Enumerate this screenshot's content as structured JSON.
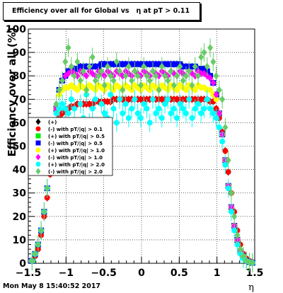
{
  "title": "Efficiency over all for Global vs   η at pT > 0.11",
  "footer": "Mon May  8 15:40:52 2017",
  "chart_data": {
    "type": "scatter",
    "title": "Efficiency over all for Global vs   η at pT > 0.11",
    "xlabel": "η",
    "ylabel": "Efficiency over all (%)",
    "xlim": [
      -1.5,
      1.5
    ],
    "ylim": [
      0,
      100
    ],
    "xticks": [
      -1.5,
      -1,
      -0.5,
      0,
      0.5,
      1,
      1.5
    ],
    "xtick_labels": [
      "−1.5",
      "−1",
      "−0.5",
      "0",
      "0.5",
      "1",
      "1.5"
    ],
    "yticks": [
      0,
      10,
      20,
      30,
      40,
      50,
      60,
      70,
      80,
      90,
      100
    ],
    "grid": true,
    "legend_position": "left-middle",
    "x": [
      -1.45,
      -1.41,
      -1.37,
      -1.33,
      -1.29,
      -1.25,
      -1.21,
      -1.17,
      -1.13,
      -1.09,
      -1.05,
      -1.01,
      -0.97,
      -0.93,
      -0.89,
      -0.85,
      -0.81,
      -0.77,
      -0.73,
      -0.69,
      -0.65,
      -0.61,
      -0.57,
      -0.53,
      -0.49,
      -0.45,
      -0.41,
      -0.37,
      -0.33,
      -0.29,
      -0.25,
      -0.21,
      -0.17,
      -0.13,
      -0.09,
      -0.05,
      -0.01,
      0.03,
      0.07,
      0.11,
      0.15,
      0.19,
      0.23,
      0.27,
      0.31,
      0.35,
      0.39,
      0.43,
      0.47,
      0.51,
      0.55,
      0.59,
      0.63,
      0.67,
      0.71,
      0.75,
      0.79,
      0.83,
      0.87,
      0.91,
      0.95,
      0.99,
      1.03,
      1.07,
      1.11,
      1.15,
      1.19,
      1.23,
      1.27,
      1.31,
      1.35,
      1.39,
      1.43,
      1.47
    ],
    "series": [
      {
        "name": "(+)",
        "color": "#000000",
        "shape": "diamond",
        "values": [
          1,
          3,
          6,
          12,
          20,
          28,
          38,
          48,
          56,
          62,
          64,
          65,
          66,
          67,
          67,
          68,
          68,
          68,
          68,
          68,
          68,
          69,
          69,
          69,
          69,
          69,
          69,
          70,
          70,
          70,
          70,
          70,
          70,
          70,
          70,
          70,
          70,
          70,
          70,
          70,
          70,
          70,
          70,
          70,
          70,
          70,
          70,
          70,
          70,
          70,
          70,
          70,
          70,
          70,
          70,
          70,
          70,
          70,
          70,
          69,
          69,
          66,
          62,
          56,
          48,
          39,
          30,
          22,
          14,
          8,
          4,
          2,
          1,
          0.5
        ]
      },
      {
        "name": "(-)  with pT/|q| > 0.1",
        "color": "#ff0000",
        "shape": "circle",
        "values": [
          1,
          3,
          6,
          12,
          20,
          28,
          38,
          48,
          56,
          62,
          64,
          65,
          66,
          67,
          67,
          68,
          68,
          68,
          68,
          68,
          68,
          69,
          69,
          69,
          69,
          69,
          69,
          70,
          70,
          70,
          70,
          70,
          70,
          70,
          70,
          70,
          70,
          70,
          70,
          70,
          70,
          70,
          70,
          70,
          70,
          70,
          70,
          70,
          70,
          70,
          70,
          70,
          70,
          70,
          70,
          70,
          70,
          70,
          70,
          69,
          69,
          66,
          62,
          56,
          48,
          39,
          30,
          22,
          14,
          8,
          4,
          2,
          1,
          0.5
        ]
      },
      {
        "name": "(+) with pT/|q| > 0.5",
        "color": "#00ee00",
        "shape": "square",
        "values": [
          1,
          4,
          8,
          14,
          22,
          32,
          44,
          56,
          66,
          74,
          78,
          80,
          82,
          82,
          83,
          83,
          84,
          84,
          84,
          84,
          84,
          84,
          84,
          85,
          85,
          85,
          85,
          85,
          85,
          85,
          85,
          85,
          85,
          85,
          85,
          85,
          85,
          85,
          85,
          85,
          85,
          85,
          85,
          85,
          85,
          85,
          85,
          85,
          85,
          85,
          84,
          84,
          84,
          84,
          84,
          83,
          83,
          83,
          82,
          80,
          77,
          72,
          64,
          55,
          44,
          33,
          24,
          16,
          10,
          5,
          3,
          1,
          0.5,
          0.2
        ]
      },
      {
        "name": "(-)  with pT/|q| > 0.5",
        "color": "#0000ff",
        "shape": "square",
        "values": [
          1,
          4,
          8,
          14,
          22,
          32,
          44,
          56,
          66,
          74,
          78,
          80,
          82,
          82,
          83,
          83,
          84,
          84,
          84,
          84,
          84,
          84,
          84,
          85,
          85,
          85,
          85,
          85,
          85,
          85,
          85,
          85,
          85,
          85,
          85,
          85,
          85,
          85,
          85,
          85,
          85,
          85,
          85,
          85,
          85,
          85,
          85,
          85,
          85,
          85,
          84,
          84,
          84,
          84,
          84,
          83,
          83,
          83,
          82,
          80,
          77,
          72,
          64,
          55,
          44,
          33,
          24,
          16,
          10,
          5,
          3,
          1,
          0.5,
          0.2
        ]
      },
      {
        "name": "(+) with pT/|q| > 1.0",
        "color": "#ffff00",
        "shape": "circle",
        "values": [
          1,
          4,
          8,
          14,
          22,
          32,
          44,
          56,
          66,
          72,
          74,
          75,
          75,
          76,
          75,
          74,
          76,
          75,
          74,
          76,
          75,
          74,
          76,
          75,
          74,
          76,
          75,
          74,
          76,
          75,
          74,
          76,
          75,
          74,
          76,
          75,
          74,
          76,
          75,
          74,
          76,
          75,
          74,
          76,
          75,
          74,
          76,
          75,
          74,
          76,
          75,
          74,
          76,
          75,
          74,
          76,
          75,
          75,
          74,
          74,
          72,
          70,
          64,
          55,
          44,
          33,
          24,
          16,
          10,
          5,
          3,
          1,
          0.5,
          0.2
        ]
      },
      {
        "name": "(-)  with pT/|q| > 1.0",
        "color": "#ff00ff",
        "shape": "diamond",
        "values": [
          1,
          4,
          8,
          14,
          22,
          32,
          44,
          56,
          66,
          74,
          78,
          80,
          81,
          82,
          81,
          80,
          82,
          81,
          80,
          82,
          81,
          80,
          82,
          81,
          80,
          82,
          81,
          80,
          82,
          81,
          80,
          82,
          81,
          80,
          82,
          81,
          80,
          82,
          81,
          80,
          82,
          81,
          80,
          82,
          81,
          80,
          82,
          81,
          80,
          82,
          81,
          80,
          82,
          81,
          80,
          82,
          81,
          81,
          80,
          79,
          77,
          72,
          64,
          55,
          44,
          33,
          24,
          16,
          10,
          5,
          3,
          1,
          0.5,
          0.2
        ]
      },
      {
        "name": "(+) with pT/|q| > 2.0",
        "color": "#00ffff",
        "shape": "circle",
        "values": [
          1,
          4,
          8,
          14,
          22,
          32,
          44,
          56,
          64,
          66,
          68,
          66,
          64,
          70,
          66,
          58,
          68,
          62,
          72,
          60,
          66,
          70,
          58,
          68,
          64,
          62,
          72,
          66,
          60,
          70,
          64,
          68,
          62,
          66,
          70,
          64,
          62,
          68,
          66,
          60,
          70,
          64,
          66,
          62,
          68,
          70,
          64,
          66,
          62,
          68,
          66,
          64,
          70,
          62,
          66,
          68,
          64,
          66,
          70,
          66,
          64,
          62,
          58,
          52,
          42,
          32,
          22,
          14,
          8,
          4,
          2,
          1,
          0.5,
          0.2
        ]
      },
      {
        "name": "(-)  with pT/|q| > 2.0",
        "color": "#66cc66",
        "shape": "diamond",
        "values": [
          1,
          4,
          8,
          14,
          22,
          32,
          44,
          56,
          68,
          74,
          78,
          86,
          92,
          84,
          80,
          86,
          78,
          82,
          74,
          84,
          88,
          78,
          80,
          82,
          76,
          84,
          80,
          78,
          86,
          82,
          74,
          80,
          84,
          78,
          82,
          80,
          76,
          84,
          80,
          78,
          82,
          80,
          74,
          84,
          80,
          78,
          82,
          76,
          80,
          84,
          78,
          80,
          82,
          76,
          84,
          80,
          88,
          90,
          84,
          92,
          86,
          80,
          74,
          70,
          58,
          44,
          30,
          20,
          12,
          6,
          3,
          1,
          0.5,
          0.2
        ]
      }
    ]
  }
}
